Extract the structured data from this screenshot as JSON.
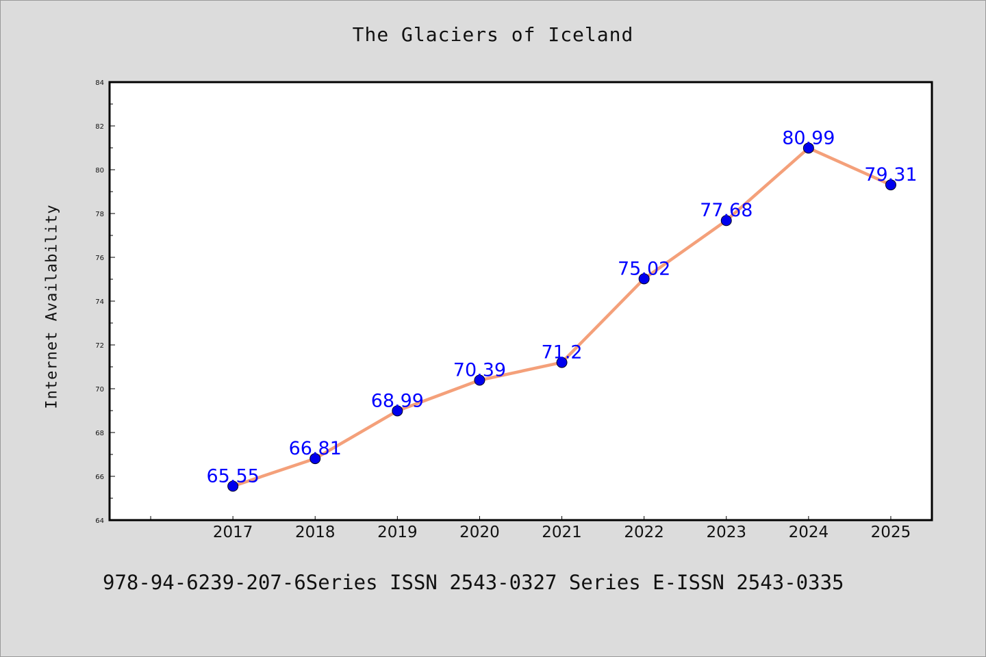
{
  "title": "The Glaciers of Iceland",
  "footer": "978-94-6239-207-6Series ISSN 2543-0327 Series E-ISSN 2543-0335",
  "colors": {
    "background": "#dcdcdc",
    "plot_background": "#ffffff",
    "line": "#f4a07a",
    "marker": "#0000ee",
    "data_label": "#0000ff"
  },
  "chart_data": {
    "type": "line",
    "title": "The Glaciers of Iceland",
    "xlabel": "",
    "ylabel": "Internet Availability",
    "categories": [
      "2017",
      "2018",
      "2019",
      "2020",
      "2021",
      "2022",
      "2023",
      "2024",
      "2025"
    ],
    "values": [
      65.55,
      66.81,
      68.99,
      70.39,
      71.2,
      75.02,
      77.68,
      80.99,
      79.31
    ],
    "data_labels": [
      "65.55",
      "66.81",
      "68.99",
      "70.39",
      "71.2",
      "75.02",
      "77.68",
      "80.99",
      "79.31"
    ],
    "xlim": [
      2015.5,
      2025.5
    ],
    "ylim": [
      64,
      84
    ],
    "yticks": [
      64,
      66,
      68,
      70,
      72,
      74,
      76,
      78,
      80,
      82,
      84
    ],
    "ytick_labels": [
      "64",
      "66",
      "68",
      "70",
      "72",
      "74",
      "76",
      "78",
      "80",
      "82",
      "84"
    ],
    "grid": false,
    "legend": "none"
  }
}
